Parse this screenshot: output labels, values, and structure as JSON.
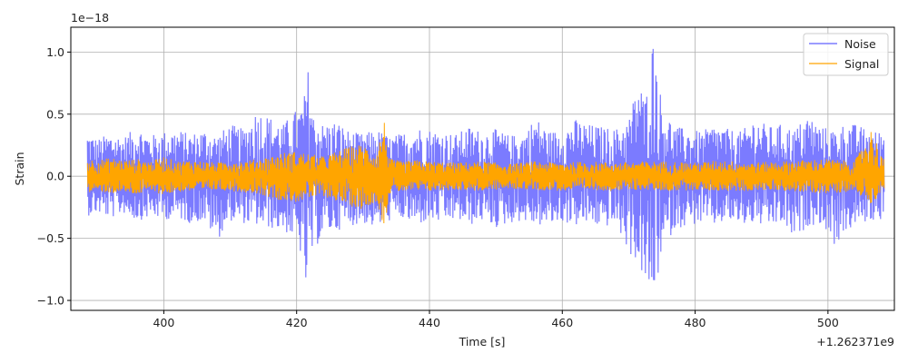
{
  "chart_data": {
    "type": "line",
    "xlabel": "Time [s]",
    "ylabel": "Strain",
    "x_offset_label": "+1.262371e9",
    "y_scale_label": "1e−18",
    "xlim": [
      386,
      510
    ],
    "ylim": [
      -1.08,
      1.2
    ],
    "x_ticks": [
      400,
      420,
      440,
      460,
      480,
      500
    ],
    "x_tick_labels": [
      "400",
      "420",
      "440",
      "460",
      "480",
      "500"
    ],
    "y_ticks": [
      -1.0,
      -0.5,
      0.0,
      0.5,
      1.0
    ],
    "y_tick_labels": [
      "−1.0",
      "−0.5",
      "0.0",
      "0.5",
      "1.0"
    ],
    "grid": true,
    "legend_position": "top-right",
    "series": [
      {
        "name": "Noise",
        "color": "#7b7bff",
        "x": [
          388.5,
          390,
          392,
          394,
          396,
          398,
          400,
          402,
          404,
          406,
          408,
          410,
          412,
          414,
          416,
          418,
          419.5,
          420.5,
          421.3,
          421.8,
          422.5,
          424,
          426,
          428,
          430,
          432,
          434,
          436,
          438,
          440,
          442,
          444,
          446,
          448,
          450,
          452,
          454,
          456,
          458,
          460,
          462,
          464,
          466,
          468,
          470,
          471.5,
          472.5,
          473.3,
          474,
          475,
          477,
          479,
          481,
          483,
          485,
          487,
          489,
          491,
          493,
          495,
          497,
          499,
          501,
          503,
          505,
          507,
          508.5
        ],
        "upper": [
          0.36,
          0.3,
          0.35,
          0.32,
          0.4,
          0.33,
          0.36,
          0.38,
          0.34,
          0.38,
          0.33,
          0.42,
          0.38,
          0.54,
          0.48,
          0.42,
          0.52,
          0.55,
          0.68,
          0.9,
          0.5,
          0.42,
          0.45,
          0.36,
          0.34,
          0.38,
          0.32,
          0.35,
          0.4,
          0.38,
          0.36,
          0.34,
          0.4,
          0.36,
          0.38,
          0.33,
          0.34,
          0.48,
          0.36,
          0.38,
          0.46,
          0.42,
          0.4,
          0.38,
          0.46,
          0.8,
          0.6,
          1.1,
          1.08,
          0.56,
          0.4,
          0.38,
          0.36,
          0.42,
          0.38,
          0.36,
          0.48,
          0.4,
          0.42,
          0.38,
          0.5,
          0.4,
          0.38,
          0.44,
          0.4,
          0.36,
          0.38
        ],
        "lower": [
          -0.32,
          -0.3,
          -0.34,
          -0.3,
          -0.36,
          -0.33,
          -0.35,
          -0.34,
          -0.38,
          -0.36,
          -0.52,
          -0.36,
          -0.38,
          -0.4,
          -0.42,
          -0.44,
          -0.5,
          -0.6,
          -0.95,
          -0.7,
          -0.62,
          -0.46,
          -0.44,
          -0.4,
          -0.38,
          -0.42,
          -0.36,
          -0.35,
          -0.4,
          -0.36,
          -0.38,
          -0.35,
          -0.4,
          -0.36,
          -0.42,
          -0.38,
          -0.36,
          -0.4,
          -0.4,
          -0.37,
          -0.4,
          -0.38,
          -0.42,
          -0.38,
          -0.62,
          -0.7,
          -0.9,
          -0.97,
          -0.95,
          -0.6,
          -0.42,
          -0.4,
          -0.38,
          -0.4,
          -0.36,
          -0.4,
          -0.38,
          -0.42,
          -0.38,
          -0.52,
          -0.4,
          -0.38,
          -0.56,
          -0.44,
          -0.38,
          -0.36,
          -0.34
        ]
      },
      {
        "name": "Signal",
        "color": "#ffa500",
        "x": [
          388.5,
          390,
          392,
          394,
          396,
          398,
          400,
          402,
          404,
          406,
          408,
          410,
          412,
          414,
          416,
          418,
          420,
          422,
          424,
          426,
          428,
          430,
          432,
          433.2,
          434,
          436,
          438,
          440,
          444,
          448,
          452,
          456,
          460,
          464,
          468,
          472,
          476,
          480,
          484,
          488,
          492,
          496,
          500,
          504,
          506.5,
          508.5
        ],
        "upper": [
          0.14,
          0.13,
          0.15,
          0.13,
          0.14,
          0.12,
          0.16,
          0.12,
          0.13,
          0.12,
          0.11,
          0.13,
          0.12,
          0.14,
          0.16,
          0.19,
          0.2,
          0.18,
          0.16,
          0.2,
          0.24,
          0.26,
          0.18,
          0.45,
          0.14,
          0.12,
          0.13,
          0.12,
          0.11,
          0.12,
          0.1,
          0.12,
          0.11,
          0.12,
          0.11,
          0.12,
          0.12,
          0.11,
          0.13,
          0.11,
          0.12,
          0.13,
          0.14,
          0.12,
          0.38,
          0.13
        ],
        "lower": [
          -0.14,
          -0.12,
          -0.14,
          -0.13,
          -0.15,
          -0.12,
          -0.15,
          -0.13,
          -0.12,
          -0.12,
          -0.11,
          -0.12,
          -0.13,
          -0.14,
          -0.17,
          -0.2,
          -0.21,
          -0.18,
          -0.16,
          -0.2,
          -0.24,
          -0.27,
          -0.2,
          -0.42,
          -0.14,
          -0.12,
          -0.12,
          -0.12,
          -0.11,
          -0.12,
          -0.1,
          -0.11,
          -0.12,
          -0.11,
          -0.12,
          -0.11,
          -0.12,
          -0.11,
          -0.12,
          -0.12,
          -0.11,
          -0.13,
          -0.14,
          -0.12,
          -0.22,
          -0.12
        ]
      }
    ]
  }
}
